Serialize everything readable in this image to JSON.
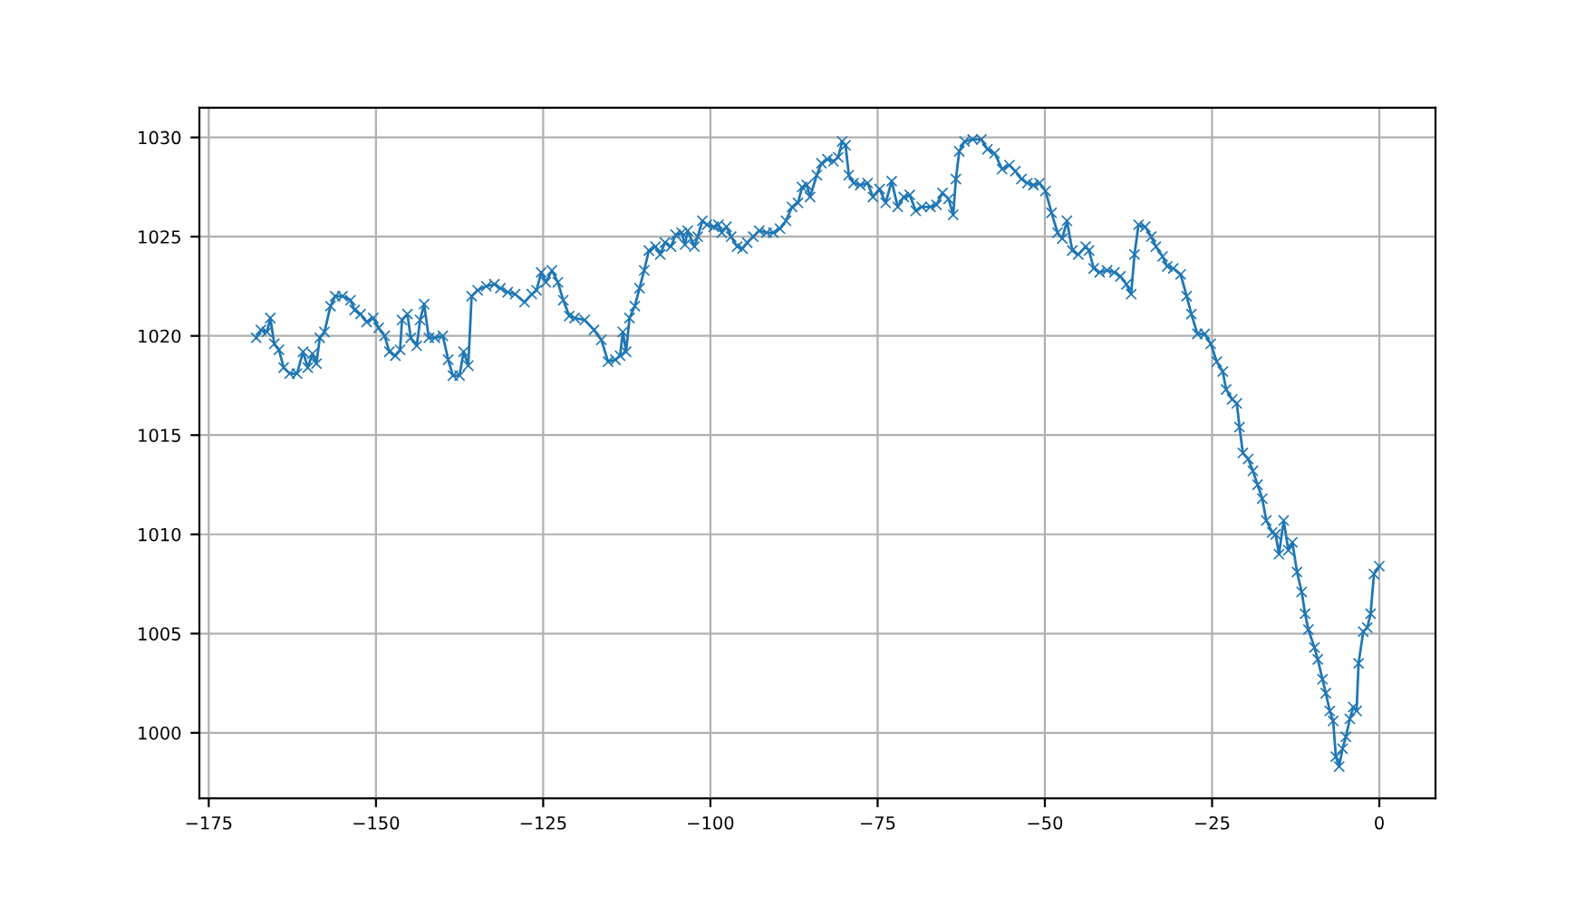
{
  "chart_data": {
    "type": "line",
    "grid": true,
    "marker": "cross",
    "line_style": "solid",
    "xlim": [
      -176.4,
      8.4
    ],
    "ylim": [
      996.7,
      1031.5
    ],
    "xticks": [
      -175,
      -150,
      -125,
      -100,
      -75,
      -50,
      -25,
      0
    ],
    "yticks": [
      1000,
      1005,
      1010,
      1015,
      1020,
      1025,
      1030
    ],
    "series": [
      {
        "color": "#1f77b4",
        "x": [
          -167.9,
          -167.2,
          -166.3,
          -165.8,
          -165.2,
          -164.5,
          -163.8,
          -162.9,
          -161.8,
          -160.9,
          -160.2,
          -159.5,
          -158.9,
          -158.4,
          -157.7,
          -156.8,
          -156.1,
          -155.0,
          -153.8,
          -153.2,
          -152.3,
          -151.4,
          -150.4,
          -149.6,
          -148.7,
          -148.0,
          -147.1,
          -146.4,
          -146.1,
          -145.3,
          -144.8,
          -143.9,
          -143.4,
          -142.8,
          -142.1,
          -141.2,
          -140.0,
          -139.2,
          -138.5,
          -137.5,
          -136.9,
          -136.2,
          -135.7,
          -134.8,
          -133.5,
          -132.3,
          -131.4,
          -130.3,
          -129.2,
          -127.8,
          -126.7,
          -126.0,
          -125.3,
          -124.6,
          -123.7,
          -122.8,
          -122.0,
          -121.1,
          -120.3,
          -118.8,
          -117.4,
          -116.3,
          -115.3,
          -114.2,
          -113.5,
          -113.1,
          -112.6,
          -112.1,
          -111.3,
          -110.6,
          -109.9,
          -109.2,
          -108.2,
          -107.5,
          -106.8,
          -105.9,
          -105.2,
          -104.3,
          -103.8,
          -103.4,
          -102.4,
          -101.9,
          -101.2,
          -100.5,
          -99.5,
          -98.8,
          -98.3,
          -97.6,
          -96.9,
          -96.0,
          -95.2,
          -94.5,
          -93.6,
          -92.7,
          -91.6,
          -90.6,
          -89.6,
          -88.7,
          -87.8,
          -86.9,
          -86.3,
          -85.6,
          -85.1,
          -84.1,
          -83.4,
          -82.5,
          -81.6,
          -80.9,
          -80.3,
          -79.8,
          -79.3,
          -78.6,
          -77.6,
          -76.5,
          -75.7,
          -74.7,
          -73.8,
          -72.9,
          -72.0,
          -71.1,
          -70.2,
          -69.3,
          -68.4,
          -67.1,
          -66.2,
          -65.3,
          -64.4,
          -63.7,
          -63.3,
          -62.8,
          -62.0,
          -60.8,
          -59.5,
          -58.6,
          -57.5,
          -56.4,
          -55.3,
          -54.4,
          -53.5,
          -52.6,
          -51.7,
          -50.8,
          -49.9,
          -49.0,
          -48.1,
          -47.4,
          -46.7,
          -45.9,
          -45.0,
          -43.9,
          -43.4,
          -42.7,
          -41.8,
          -40.7,
          -39.6,
          -38.7,
          -37.8,
          -37.1,
          -36.6,
          -36.0,
          -35.0,
          -34.1,
          -33.4,
          -32.4,
          -31.7,
          -30.8,
          -29.7,
          -28.8,
          -28.1,
          -27.2,
          -26.1,
          -25.2,
          -24.3,
          -23.4,
          -22.9,
          -22.0,
          -21.3,
          -20.9,
          -20.4,
          -19.6,
          -18.9,
          -18.2,
          -17.5,
          -16.9,
          -16.0,
          -15.5,
          -15.0,
          -14.3,
          -13.6,
          -13.0,
          -12.3,
          -11.6,
          -11.1,
          -10.6,
          -9.7,
          -9.2,
          -8.5,
          -8.0,
          -7.4,
          -6.9,
          -6.5,
          -6.0,
          -5.5,
          -5.0,
          -4.4,
          -3.9,
          -3.4,
          -3.1,
          -2.4,
          -1.8,
          -1.3,
          -0.8,
          0.0
        ],
        "values": [
          1019.9,
          1020.3,
          1020.2,
          1020.9,
          1019.6,
          1019.3,
          1018.4,
          1018.1,
          1018.1,
          1019.2,
          1018.4,
          1019.1,
          1018.6,
          1019.9,
          1020.2,
          1021.5,
          1022.0,
          1022.0,
          1021.8,
          1021.3,
          1021.1,
          1020.7,
          1020.9,
          1020.4,
          1020.0,
          1019.2,
          1019.0,
          1019.3,
          1020.8,
          1021.1,
          1019.9,
          1019.5,
          1020.8,
          1021.6,
          1019.9,
          1019.9,
          1020.0,
          1018.8,
          1018.0,
          1018.0,
          1019.2,
          1018.5,
          1022.0,
          1022.3,
          1022.5,
          1022.6,
          1022.4,
          1022.2,
          1022.1,
          1021.7,
          1022.1,
          1022.3,
          1023.2,
          1022.7,
          1023.3,
          1022.7,
          1021.8,
          1021.0,
          1020.9,
          1020.8,
          1020.3,
          1019.8,
          1018.7,
          1018.8,
          1019.0,
          1020.2,
          1019.2,
          1020.9,
          1021.5,
          1022.4,
          1023.3,
          1024.3,
          1024.5,
          1024.1,
          1024.7,
          1024.5,
          1025.1,
          1025.2,
          1024.6,
          1025.3,
          1024.5,
          1025.0,
          1025.8,
          1025.6,
          1025.5,
          1025.6,
          1025.2,
          1025.5,
          1025.0,
          1024.5,
          1024.4,
          1024.7,
          1025.0,
          1025.3,
          1025.2,
          1025.2,
          1025.4,
          1025.8,
          1026.5,
          1026.7,
          1027.5,
          1027.6,
          1027.0,
          1028.1,
          1028.7,
          1028.9,
          1028.8,
          1029.0,
          1029.8,
          1029.6,
          1028.1,
          1027.7,
          1027.6,
          1027.7,
          1027.0,
          1027.4,
          1026.7,
          1027.8,
          1026.5,
          1027.0,
          1027.1,
          1026.3,
          1026.5,
          1026.5,
          1026.6,
          1027.2,
          1026.9,
          1026.1,
          1027.9,
          1029.3,
          1029.8,
          1029.9,
          1029.9,
          1029.4,
          1029.2,
          1028.4,
          1028.6,
          1028.3,
          1027.9,
          1027.7,
          1027.6,
          1027.7,
          1027.3,
          1026.2,
          1025.2,
          1024.9,
          1025.8,
          1024.3,
          1024.1,
          1024.5,
          1024.3,
          1023.4,
          1023.2,
          1023.3,
          1023.2,
          1023.0,
          1022.6,
          1022.1,
          1024.1,
          1025.6,
          1025.5,
          1025.0,
          1024.5,
          1024.0,
          1023.5,
          1023.4,
          1023.1,
          1022.0,
          1021.1,
          1020.1,
          1020.1,
          1019.6,
          1018.7,
          1018.2,
          1017.3,
          1016.8,
          1016.6,
          1015.4,
          1014.1,
          1013.8,
          1013.2,
          1012.5,
          1011.8,
          1010.7,
          1010.1,
          1010.0,
          1009.0,
          1010.7,
          1009.2,
          1009.6,
          1008.1,
          1007.1,
          1006.0,
          1005.2,
          1004.3,
          1003.7,
          1002.7,
          1002.0,
          1001.1,
          1000.6,
          998.8,
          998.3,
          999.2,
          999.8,
          1000.7,
          1001.3,
          1001.1,
          1003.5,
          1005.1,
          1005.3,
          1006.0,
          1008.0,
          1008.4
        ]
      }
    ]
  }
}
